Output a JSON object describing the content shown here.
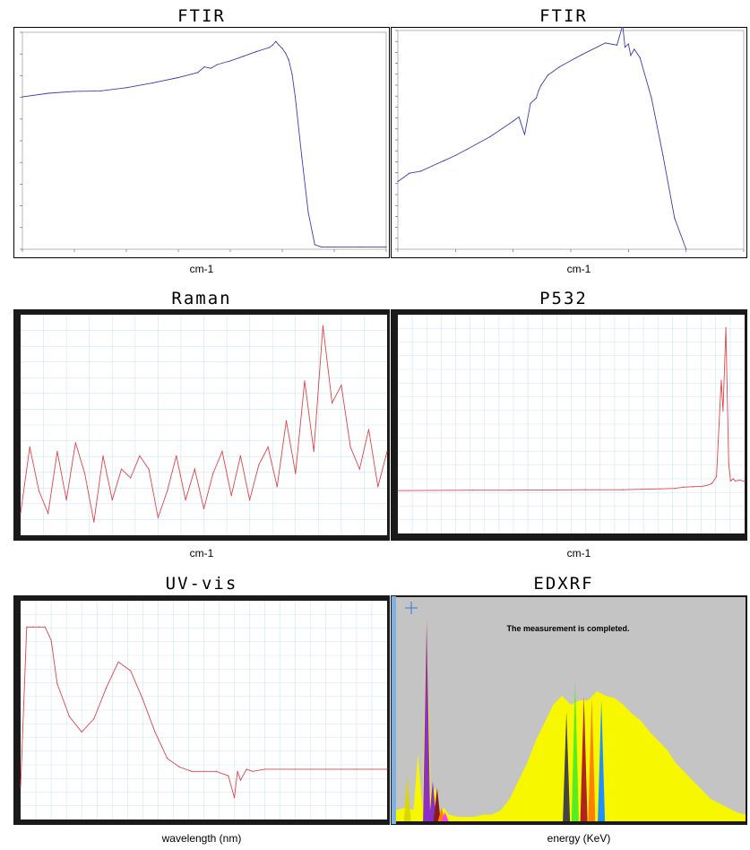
{
  "panels": [
    {
      "title": "FTIR",
      "xlabel": "cm-1"
    },
    {
      "title": "FTIR",
      "xlabel": "cm-1"
    },
    {
      "title": "Raman",
      "xlabel": "cm-1"
    },
    {
      "title": "P532",
      "xlabel": "cm-1"
    },
    {
      "title": "UV-vis",
      "xlabel": "wavelength (nm)"
    },
    {
      "title": "EDXRF",
      "xlabel": "energy (KeV)"
    }
  ],
  "edxrf_message": "The measurement is completed.",
  "colors": {
    "ftir_line": "#3a3fb0",
    "spectrum_line": "#e0444a",
    "grid": "#cfe6f2",
    "edx_background": "#c4c4c4",
    "edx_fill": "#f7f700"
  },
  "chart_data": [
    {
      "type": "line",
      "title": "FTIR",
      "xlabel": "cm-1",
      "xlim": [
        7000,
        1400
      ],
      "ylim": [
        0,
        47
      ],
      "x": [
        7000,
        6600,
        6200,
        5800,
        5400,
        5000,
        4600,
        4300,
        4200,
        4100,
        4000,
        3800,
        3600,
        3400,
        3200,
        3150,
        3100,
        3050,
        3000,
        2950,
        2900,
        2850,
        2800,
        2700,
        2600,
        2500,
        2400,
        2300,
        2200,
        1800,
        1400
      ],
      "y": [
        33,
        33.8,
        34.2,
        34.3,
        35,
        36,
        37.2,
        38.3,
        39.5,
        39.2,
        40,
        40.8,
        41.8,
        42.8,
        43.7,
        44.2,
        45,
        44.2,
        43.5,
        42.5,
        41,
        38,
        33,
        20,
        8,
        1,
        0.5,
        0.5,
        0.5,
        0.5,
        0.5
      ],
      "colors": [
        "#3a3fb0"
      ]
    },
    {
      "type": "line",
      "title": "FTIR",
      "xlabel": "cm-1",
      "xlim": [
        4000,
        1000
      ],
      "ylim": [
        29,
        50
      ],
      "x": [
        4000,
        3900,
        3800,
        3700,
        3600,
        3500,
        3400,
        3200,
        3000,
        2950,
        2900,
        2850,
        2800,
        2780,
        2760,
        2700,
        2600,
        2400,
        2200,
        2100,
        2050,
        2030,
        2000,
        1980,
        1950,
        1900,
        1800,
        1700,
        1600,
        1500
      ],
      "y": [
        35.5,
        36.3,
        36.5,
        37,
        37.5,
        38,
        38.6,
        39.8,
        41.3,
        41.7,
        40,
        43,
        43.5,
        44.2,
        44.7,
        45.7,
        46.5,
        47.7,
        48.8,
        48.6,
        50.5,
        48.4,
        48.7,
        47.6,
        48.2,
        47.4,
        43.5,
        38,
        32,
        29
      ],
      "colors": [
        "#3a3fb0"
      ]
    },
    {
      "type": "line",
      "title": "Raman",
      "xlabel": "cm-1",
      "xlim": [
        200,
        1800
      ],
      "ylim": [
        0,
        100
      ],
      "x": [
        200,
        240,
        280,
        320,
        360,
        400,
        440,
        480,
        520,
        560,
        600,
        640,
        680,
        720,
        760,
        800,
        840,
        880,
        920,
        960,
        1000,
        1040,
        1080,
        1120,
        1160,
        1200,
        1240,
        1280,
        1320,
        1360,
        1400,
        1440,
        1480,
        1520,
        1560,
        1600,
        1640,
        1680,
        1720,
        1760,
        1800
      ],
      "y": [
        10,
        40,
        20,
        10,
        38,
        16,
        42,
        28,
        6,
        36,
        16,
        30,
        26,
        36,
        30,
        8,
        20,
        36,
        16,
        30,
        12,
        28,
        38,
        18,
        36,
        16,
        32,
        40,
        22,
        52,
        28,
        70,
        38,
        95,
        60,
        68,
        40,
        30,
        48,
        22,
        38
      ],
      "colors": [
        "#e0444a"
      ]
    },
    {
      "type": "line",
      "title": "P532",
      "xlabel": "cm-1",
      "xlim": [
        400,
        4100
      ],
      "ylim": [
        -1000,
        4000
      ],
      "x": [
        400,
        800,
        1200,
        1600,
        2000,
        2400,
        2800,
        3000,
        3200,
        3350,
        3450,
        3550,
        3650,
        3700,
        3750,
        3800,
        3850,
        3870,
        3900,
        3930,
        3950,
        3980,
        4000,
        4050,
        4100
      ],
      "y": [
        -20,
        -15,
        -10,
        -10,
        -5,
        0,
        0,
        10,
        20,
        30,
        60,
        70,
        80,
        100,
        140,
        300,
        2500,
        1800,
        3700,
        600,
        200,
        250,
        200,
        220,
        190
      ],
      "colors": [
        "#e0444a"
      ]
    },
    {
      "type": "line",
      "title": "UV-vis",
      "xlabel": "wavelength (nm)",
      "xlim": [
        300,
        900
      ],
      "ylim": [
        0,
        100
      ],
      "x": [
        300,
        310,
        320,
        330,
        340,
        350,
        360,
        380,
        400,
        420,
        440,
        460,
        480,
        500,
        520,
        540,
        560,
        580,
        600,
        620,
        640,
        650,
        655,
        660,
        670,
        680,
        700,
        750,
        800,
        850,
        900
      ],
      "y": [
        15,
        88,
        88,
        88,
        88,
        82,
        62,
        47,
        40,
        46,
        60,
        72,
        68,
        55,
        40,
        28,
        24,
        22,
        22,
        22,
        20,
        10,
        22,
        18,
        23,
        22,
        23,
        23,
        23,
        23,
        23
      ],
      "colors": [
        "#e0444a"
      ]
    },
    {
      "type": "area",
      "title": "EDXRF",
      "xlabel": "energy (KeV)",
      "xlim": [
        0,
        40
      ],
      "ylim": [
        0,
        100
      ],
      "x": [
        0,
        1,
        2,
        2.5,
        3,
        3.5,
        4,
        4.5,
        5,
        5.5,
        6,
        7,
        8,
        9,
        10,
        11,
        12,
        13,
        14,
        15,
        16,
        17,
        18,
        19,
        20,
        21,
        22,
        23,
        24,
        25,
        26,
        27,
        28,
        29,
        30,
        31,
        32,
        33,
        34,
        35,
        36,
        37,
        38,
        39,
        40
      ],
      "y": [
        5,
        6,
        5,
        30,
        6,
        90,
        10,
        15,
        4,
        6,
        3,
        2,
        2,
        2,
        3,
        3,
        5,
        10,
        18,
        26,
        36,
        44,
        52,
        56,
        52,
        54,
        54,
        58,
        56,
        55,
        52,
        48,
        45,
        40,
        36,
        32,
        26,
        22,
        18,
        14,
        10,
        8,
        6,
        4,
        3
      ],
      "series": [
        {
          "name": "",
          "values": [
            5,
            6,
            5,
            30,
            6,
            90,
            10,
            15,
            4,
            6,
            3,
            2,
            2,
            2,
            3,
            3,
            5,
            10,
            18,
            26,
            36,
            44,
            52,
            56,
            52,
            54,
            54,
            58,
            56,
            55,
            52,
            48,
            45,
            40,
            36,
            32,
            26,
            22,
            18,
            14,
            10,
            8,
            6,
            4,
            3
          ]
        }
      ],
      "peaks": [
        {
          "x": 1.3,
          "y": 20,
          "color": "#d9d900"
        },
        {
          "x": 3.5,
          "y": 90,
          "color": "#8a2fc8"
        },
        {
          "x": 4.2,
          "y": 18,
          "color": "#8a2fc8"
        },
        {
          "x": 4.7,
          "y": 15,
          "color": "#8b1a1a"
        },
        {
          "x": 5.2,
          "y": 6,
          "color": "#ff7f00"
        },
        {
          "x": 5.6,
          "y": 4,
          "color": "#ff3aff"
        },
        {
          "x": 19.5,
          "y": 49,
          "color": "#444444"
        },
        {
          "x": 20.5,
          "y": 63,
          "color": "#55ee22"
        },
        {
          "x": 21.5,
          "y": 56,
          "color": "#b22222"
        },
        {
          "x": 22.4,
          "y": 55,
          "color": "#ff7f00"
        },
        {
          "x": 23.5,
          "y": 54,
          "color": "#1e90ff"
        }
      ],
      "colors": [
        "#f7f700",
        "#c4c4c4"
      ]
    }
  ]
}
